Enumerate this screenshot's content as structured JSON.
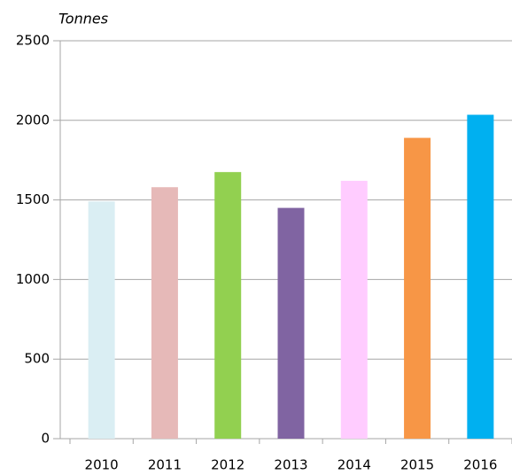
{
  "chart_data": {
    "type": "bar",
    "y_axis_label": "Tonnes",
    "categories": [
      "2010",
      "2011",
      "2012",
      "2013",
      "2014",
      "2015",
      "2016"
    ],
    "values": [
      1490,
      1580,
      1675,
      1450,
      1620,
      1890,
      2035
    ],
    "colors": [
      "#daeef3",
      "#e6b9b8",
      "#92d050",
      "#8064a2",
      "#ffccff",
      "#f79646",
      "#00b0f0"
    ],
    "ylim": [
      0,
      2500
    ],
    "yticks": [
      0,
      500,
      1000,
      1500,
      2000,
      2500
    ],
    "grid": true
  }
}
